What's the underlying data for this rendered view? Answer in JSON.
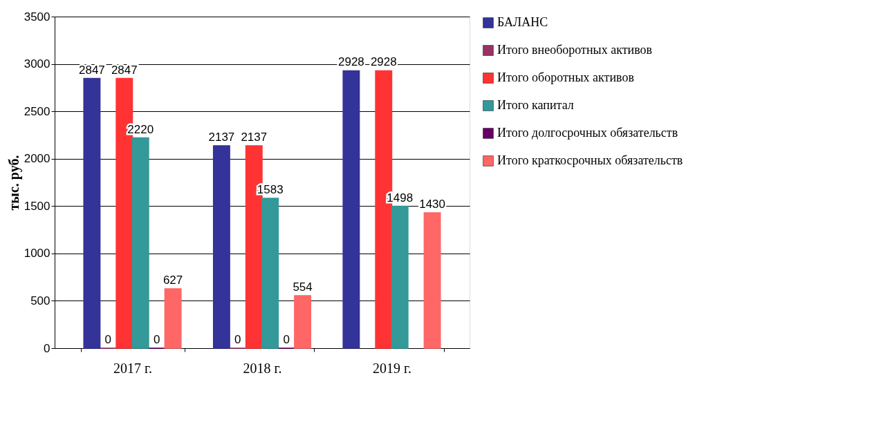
{
  "chart_data": {
    "type": "bar",
    "ylabel": "тыс. руб.",
    "categories": [
      "2017 г.",
      "2018 г.",
      "2019 г."
    ],
    "series": [
      {
        "name": "БАЛАНС",
        "color": "#333399",
        "values": [
          2847,
          2137,
          2928
        ]
      },
      {
        "name": "Итого внеоборотных активов",
        "color": "#993366",
        "values": [
          0,
          0,
          null
        ]
      },
      {
        "name": "Итого оборотных активов",
        "color": "#ff3333",
        "values": [
          2847,
          2137,
          2928
        ]
      },
      {
        "name": "Итого капитал",
        "color": "#339999",
        "values": [
          2220,
          1583,
          1498
        ]
      },
      {
        "name": "Итого долгосрочных обязательств",
        "color": "#660066",
        "values": [
          0,
          0,
          null
        ]
      },
      {
        "name": "Итого краткосрочных обязательств",
        "color": "#ff6666",
        "values": [
          627,
          554,
          1430
        ]
      }
    ],
    "ylim": [
      0,
      3500
    ],
    "yticks": [
      0,
      500,
      1000,
      1500,
      2000,
      2500,
      3000,
      3500
    ],
    "grid": "y",
    "legend": "right",
    "data_labels": true
  }
}
